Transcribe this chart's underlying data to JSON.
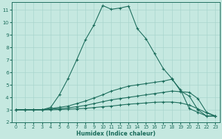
{
  "xlabel": "Humidex (Indice chaleur)",
  "bg_color": "#c5e8e0",
  "grid_color": "#a8d4cc",
  "line_color": "#1a6b5a",
  "spine_color": "#1a6b5a",
  "xlim": [
    -0.5,
    23.5
  ],
  "ylim": [
    2.0,
    11.6
  ],
  "xticks": [
    0,
    1,
    2,
    3,
    4,
    5,
    6,
    7,
    8,
    9,
    10,
    11,
    12,
    13,
    14,
    15,
    16,
    17,
    18,
    19,
    20,
    21,
    22,
    23
  ],
  "yticks": [
    2,
    3,
    4,
    5,
    6,
    7,
    8,
    9,
    10,
    11
  ],
  "series": [
    [
      3.0,
      3.0,
      3.0,
      3.0,
      3.2,
      4.2,
      5.5,
      7.0,
      8.6,
      9.8,
      11.35,
      11.05,
      11.15,
      11.3,
      9.5,
      8.7,
      7.5,
      6.3,
      5.5,
      4.5,
      4.1,
      3.0,
      2.5,
      2.5
    ],
    [
      3.0,
      3.0,
      3.0,
      3.0,
      3.1,
      3.2,
      3.3,
      3.5,
      3.7,
      3.95,
      4.2,
      4.5,
      4.7,
      4.9,
      5.0,
      5.1,
      5.2,
      5.3,
      5.45,
      4.6,
      3.1,
      2.8,
      2.5,
      2.5
    ],
    [
      3.0,
      3.0,
      3.0,
      3.0,
      3.05,
      3.1,
      3.15,
      3.25,
      3.35,
      3.5,
      3.65,
      3.8,
      3.9,
      4.0,
      4.1,
      4.2,
      4.3,
      4.4,
      4.5,
      4.45,
      4.4,
      3.9,
      2.8,
      2.5
    ],
    [
      3.0,
      3.0,
      3.0,
      3.0,
      3.0,
      3.02,
      3.05,
      3.08,
      3.12,
      3.18,
      3.25,
      3.3,
      3.38,
      3.45,
      3.5,
      3.55,
      3.6,
      3.62,
      3.62,
      3.55,
      3.38,
      3.08,
      2.75,
      2.5
    ]
  ]
}
